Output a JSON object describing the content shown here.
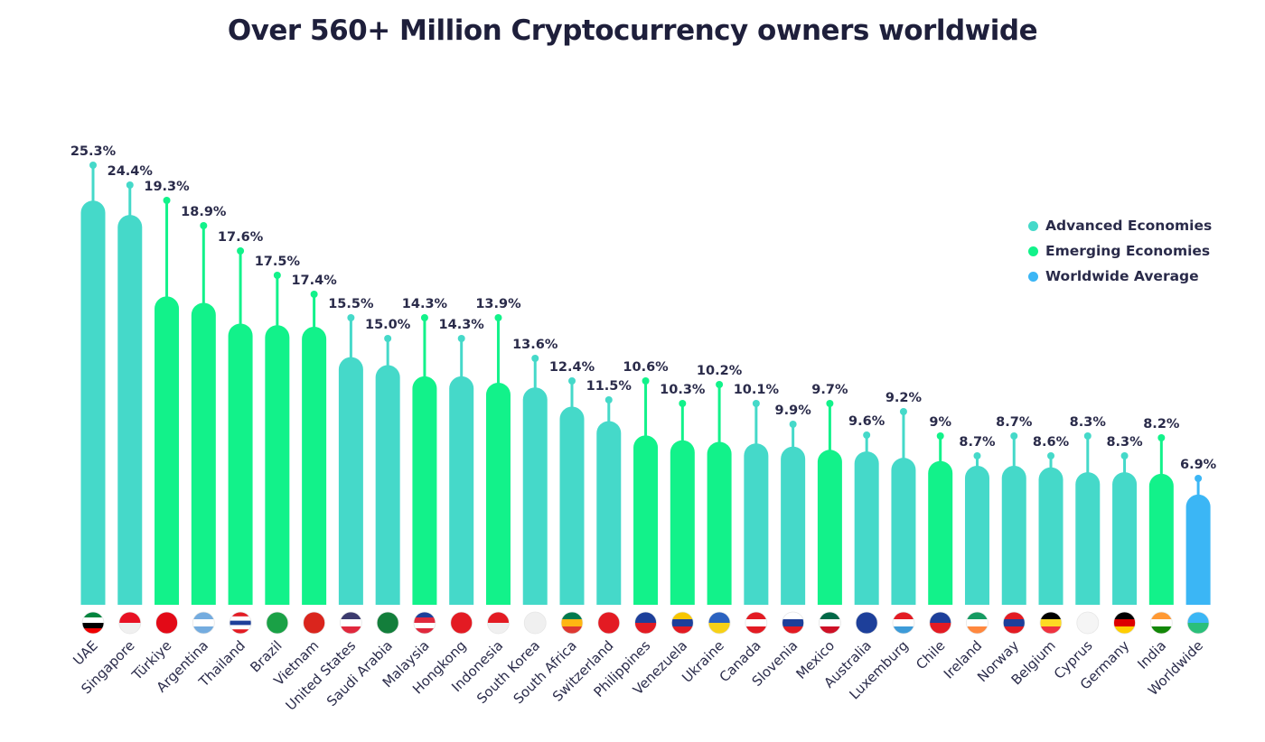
{
  "chart_data": {
    "type": "bar",
    "title": "Over 560+ Million Cryptocurrency owners worldwide",
    "categories": [
      "UAE",
      "Singapore",
      "Türkiye",
      "Argentina",
      "Thailand",
      "Brazil",
      "Vietnam",
      "United States",
      "Saudi Arabia",
      "Malaysia",
      "Hongkong",
      "Indonesia",
      "South Korea",
      "South Africa",
      "Switzerland",
      "Philippines",
      "Venezuela",
      "Ukraine",
      "Canada",
      "Slovenia",
      "Mexico",
      "Australia",
      "Luxemburg",
      "Chile",
      "Ireland",
      "Norway",
      "Belgium",
      "Cyprus",
      "Germany",
      "India",
      "Worldwide"
    ],
    "values": [
      25.3,
      24.4,
      19.3,
      18.9,
      17.6,
      17.5,
      17.4,
      15.5,
      15.0,
      14.3,
      14.3,
      13.9,
      13.6,
      12.4,
      11.5,
      10.6,
      10.3,
      10.2,
      10.1,
      9.9,
      9.7,
      9.6,
      9.2,
      9,
      8.7,
      8.7,
      8.6,
      8.3,
      8.3,
      8.2,
      6.9
    ],
    "value_labels": [
      "25.3%",
      "24.4%",
      "19.3%",
      "18.9%",
      "17.6%",
      "17.5%",
      "17.4%",
      "15.5%",
      "15.0%",
      "14.3%",
      "14.3%",
      "13.9%",
      "13.6%",
      "12.4%",
      "11.5%",
      "10.6%",
      "10.3%",
      "10.2%",
      "10.1%",
      "9.9%",
      "9.7%",
      "9.6%",
      "9.2%",
      "9%",
      "8.7%",
      "8.7%",
      "8.6%",
      "8.3%",
      "8.3%",
      "8.2%",
      "6.9%"
    ],
    "groups": [
      "A",
      "A",
      "E",
      "E",
      "E",
      "E",
      "E",
      "A",
      "A",
      "E",
      "A",
      "E",
      "A",
      "A",
      "A",
      "E",
      "E",
      "E",
      "A",
      "A",
      "E",
      "A",
      "A",
      "E",
      "A",
      "A",
      "A",
      "A",
      "A",
      "E",
      "W"
    ],
    "legend": [
      {
        "key": "A",
        "name": "Advanced Economies",
        "color": "#45d9c9"
      },
      {
        "key": "E",
        "name": "Emerging Economies",
        "color": "#12f28a"
      },
      {
        "key": "W",
        "name": "Worldwide Average",
        "color": "#3bb6f5"
      }
    ],
    "legend_position": "top-right",
    "ylim": [
      0,
      26
    ],
    "grid": false,
    "xlabel": "",
    "ylabel": "",
    "icons": "country-flag-icons"
  }
}
